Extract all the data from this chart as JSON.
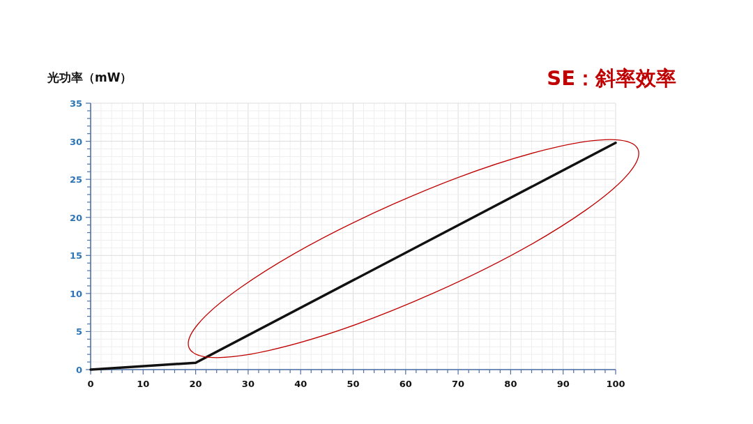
{
  "chart_data": {
    "type": "line",
    "title": "SE：斜率效率",
    "ylabel": "光功率（mW）",
    "x": [
      0,
      20,
      100
    ],
    "series": [
      {
        "color": "#111111",
        "values": [
          0,
          0.9,
          29.8
        ]
      }
    ],
    "xlim": [
      0,
      100
    ],
    "xticks": [
      0,
      {
        "value": 2,
        "label": null
      },
      {
        "value": 4,
        "label": null
      },
      {
        "value": 6,
        "label": null
      },
      {
        "value": 8,
        "label": null
      },
      10,
      {
        "value": 12,
        "label": null
      },
      {
        "value": 14,
        "label": null
      },
      {
        "value": 16,
        "label": null
      },
      {
        "value": 18,
        "label": null
      },
      20,
      {
        "value": 22,
        "label": null
      },
      {
        "value": 24,
        "label": null
      },
      {
        "value": 26,
        "label": null
      },
      {
        "value": 28,
        "label": null
      },
      30,
      {
        "value": 32,
        "label": null
      },
      {
        "value": 34,
        "label": null
      },
      {
        "value": 36,
        "label": null
      },
      {
        "value": 38,
        "label": null
      },
      40,
      {
        "value": 42,
        "label": null
      },
      {
        "value": 44,
        "label": null
      },
      {
        "value": 46,
        "label": null
      },
      {
        "value": 48,
        "label": null
      },
      50,
      {
        "value": 52,
        "label": null
      },
      {
        "value": 54,
        "label": null
      },
      {
        "value": 56,
        "label": null
      },
      {
        "value": 58,
        "label": null
      },
      60,
      {
        "value": 62,
        "label": null
      },
      {
        "value": 64,
        "label": null
      },
      {
        "value": 66,
        "label": null
      },
      {
        "value": 68,
        "label": null
      },
      70,
      {
        "value": 72,
        "label": null
      },
      {
        "value": 74,
        "label": null
      },
      {
        "value": 76,
        "label": null
      },
      {
        "value": 78,
        "label": null
      },
      80,
      {
        "value": 82,
        "label": null
      },
      {
        "value": 84,
        "label": null
      },
      {
        "value": 86,
        "label": null
      },
      {
        "value": 88,
        "label": null
      },
      90,
      {
        "value": 92,
        "label": null
      },
      {
        "value": 94,
        "label": null
      },
      {
        "value": 96,
        "label": null
      },
      {
        "value": 98,
        "label": null
      },
      100
    ],
    "ylim": [
      0,
      35
    ],
    "yticks": [
      0,
      {
        "value": 1,
        "label": null
      },
      {
        "value": 2,
        "label": null
      },
      {
        "value": 3,
        "label": null
      },
      {
        "value": 4,
        "label": null
      },
      5,
      {
        "value": 6,
        "label": null
      },
      {
        "value": 7,
        "label": null
      },
      {
        "value": 8,
        "label": null
      },
      {
        "value": 9,
        "label": null
      },
      10,
      {
        "value": 11,
        "label": null
      },
      {
        "value": 12,
        "label": null
      },
      {
        "value": 13,
        "label": null
      },
      {
        "value": 14,
        "label": null
      },
      15,
      {
        "value": 16,
        "label": null
      },
      {
        "value": 17,
        "label": null
      },
      {
        "value": 18,
        "label": null
      },
      {
        "value": 19,
        "label": null
      },
      20,
      {
        "value": 21,
        "label": null
      },
      {
        "value": 22,
        "label": null
      },
      {
        "value": 23,
        "label": null
      },
      {
        "value": 24,
        "label": null
      },
      25,
      {
        "value": 26,
        "label": null
      },
      {
        "value": 27,
        "label": null
      },
      {
        "value": 28,
        "label": null
      },
      {
        "value": 29,
        "label": null
      },
      30,
      {
        "value": 31,
        "label": null
      },
      {
        "value": 32,
        "label": null
      },
      {
        "value": 33,
        "label": null
      },
      {
        "value": 34,
        "label": null
      },
      35
    ],
    "grid": true,
    "line_style": "solid",
    "marker": "none"
  }
}
